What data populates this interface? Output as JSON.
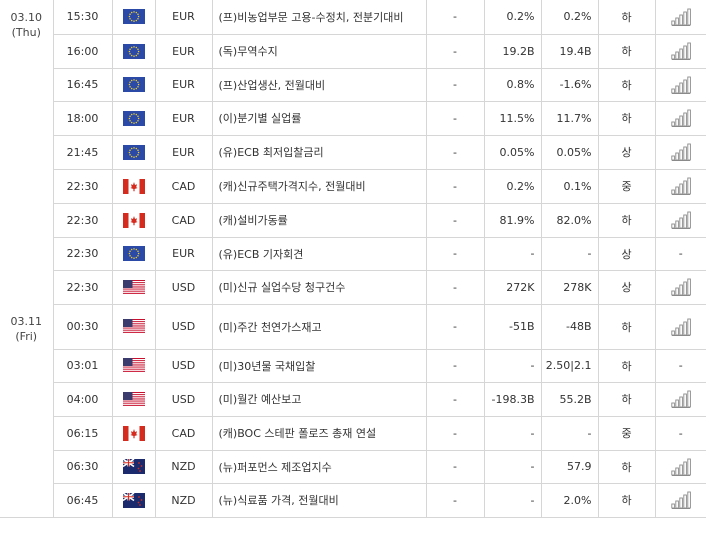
{
  "colors": {
    "border": "#d6d6d6",
    "text": "#333333",
    "eu_blue": "#2b4aa8",
    "eu_star": "#f0d020",
    "ca_red": "#d52b1e",
    "us_red": "#c8102e",
    "us_blue": "#3c3b6e",
    "nz_blue": "#1a2a6c",
    "chart_icon_stroke": "#8a8a8a"
  },
  "columns": [
    "date",
    "time",
    "flag",
    "currency",
    "event",
    "importance_dash",
    "actual",
    "forecast",
    "importance",
    "chart"
  ],
  "date_groups": [
    {
      "date": "03.10",
      "day": "(Thu)",
      "rows": [
        {
          "time": "15:30",
          "flag": "eu",
          "currency": "EUR",
          "event": "(프)비농업부문 고용-수정치, 전분기대비",
          "dash": "-",
          "actual": "0.2%",
          "forecast": "0.2%",
          "importance": "하",
          "chart": true
        },
        {
          "time": "16:00",
          "flag": "eu",
          "currency": "EUR",
          "event": "(독)무역수지",
          "dash": "-",
          "actual": "19.2B",
          "forecast": "19.4B",
          "importance": "하",
          "chart": true
        },
        {
          "time": "16:45",
          "flag": "eu",
          "currency": "EUR",
          "event": "(프)산업생산, 전월대비",
          "dash": "-",
          "actual": "0.8%",
          "forecast": "-1.6%",
          "importance": "하",
          "chart": true
        },
        {
          "time": "18:00",
          "flag": "eu",
          "currency": "EUR",
          "event": "(이)분기별 실업률",
          "dash": "-",
          "actual": "11.5%",
          "forecast": "11.7%",
          "importance": "하",
          "chart": true
        },
        {
          "time": "21:45",
          "flag": "eu",
          "currency": "EUR",
          "event": "(유)ECB 최저입찰금리",
          "dash": "-",
          "actual": "0.05%",
          "forecast": "0.05%",
          "importance": "상",
          "chart": true
        },
        {
          "time": "22:30",
          "flag": "ca",
          "currency": "CAD",
          "event": "(캐)신규주택가격지수, 전월대비",
          "dash": "-",
          "actual": "0.2%",
          "forecast": "0.1%",
          "importance": "중",
          "chart": true
        },
        {
          "time": "22:30",
          "flag": "ca",
          "currency": "CAD",
          "event": "(캐)설비가동률",
          "dash": "-",
          "actual": "81.9%",
          "forecast": "82.0%",
          "importance": "하",
          "chart": true
        },
        {
          "time": "22:30",
          "flag": "eu",
          "currency": "EUR",
          "event": "(유)ECB 기자회견",
          "dash": "-",
          "actual": "-",
          "forecast": "-",
          "importance": "상",
          "chart": false,
          "chart_text": "-"
        },
        {
          "time": "22:30",
          "flag": "us",
          "currency": "USD",
          "event": "(미)신규 실업수당 청구건수",
          "dash": "-",
          "actual": "272K",
          "forecast": "278K",
          "importance": "상",
          "chart": true
        }
      ]
    },
    {
      "date": "03.11",
      "day": "(Fri)",
      "rows": [
        {
          "time": "00:30",
          "flag": "us",
          "currency": "USD",
          "event": "(미)주간 천연가스재고",
          "dash": "-",
          "actual": "-51B",
          "forecast": "-48B",
          "importance": "하",
          "chart": true
        },
        {
          "time": "03:01",
          "flag": "us",
          "currency": "USD",
          "event": "(미)30년물 국채입찰",
          "dash": "-",
          "actual": "-",
          "forecast": "2.50|2.1",
          "importance": "하",
          "chart": false,
          "chart_text": "-"
        },
        {
          "time": "04:00",
          "flag": "us",
          "currency": "USD",
          "event": "(미)월간 예산보고",
          "dash": "-",
          "actual": "-198.3B",
          "forecast": "55.2B",
          "importance": "하",
          "chart": true
        },
        {
          "time": "06:15",
          "flag": "ca",
          "currency": "CAD",
          "event": "(캐)BOC 스테판 폴로즈 총재 연설",
          "dash": "-",
          "actual": "-",
          "forecast": "-",
          "importance": "중",
          "chart": false,
          "chart_text": "-"
        },
        {
          "time": "06:30",
          "flag": "nz",
          "currency": "NZD",
          "event": "(뉴)퍼포먼스 제조업지수",
          "dash": "-",
          "actual": "-",
          "forecast": "57.9",
          "importance": "하",
          "chart": true
        },
        {
          "time": "06:45",
          "flag": "nz",
          "currency": "NZD",
          "event": "(뉴)식료품 가격, 전월대비",
          "dash": "-",
          "actual": "-",
          "forecast": "2.0%",
          "importance": "하",
          "chart": true
        }
      ]
    }
  ]
}
